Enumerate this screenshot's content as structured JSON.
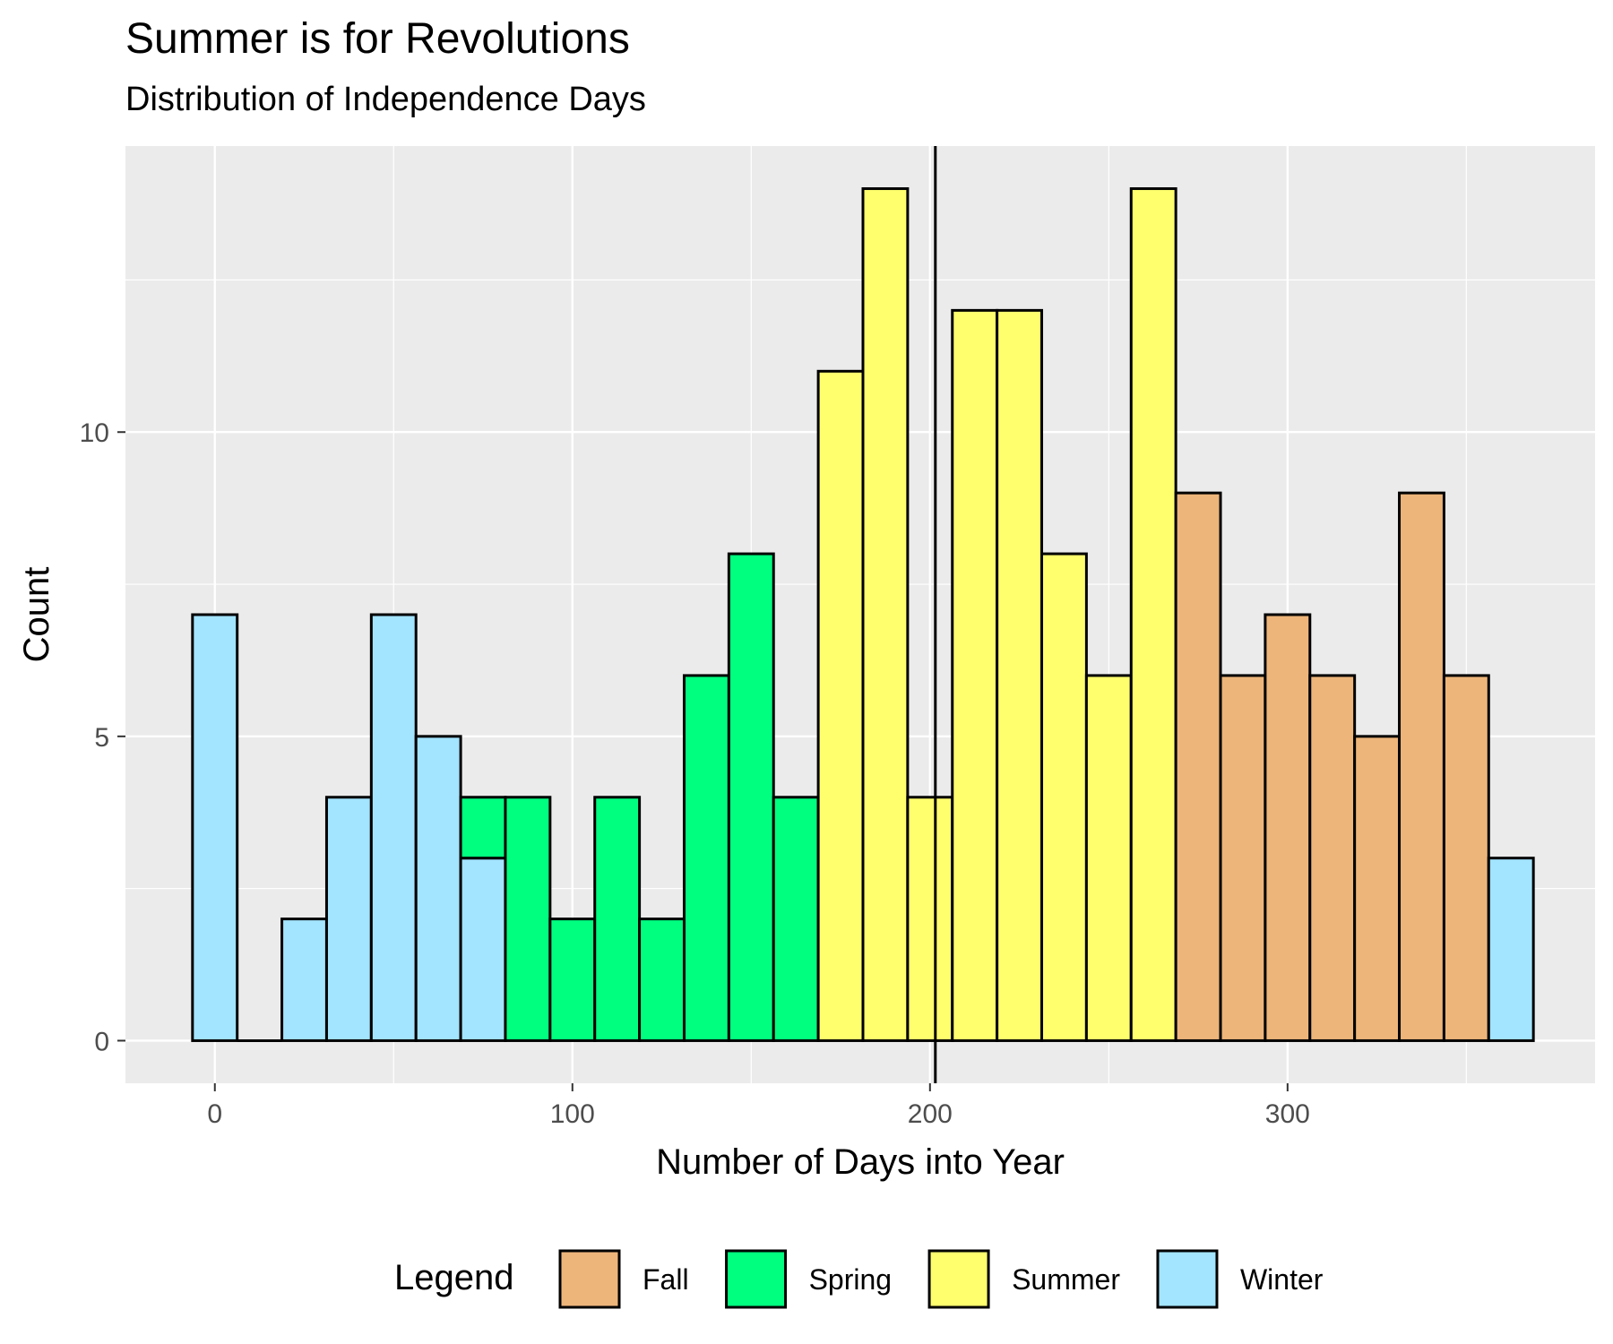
{
  "chart_data": {
    "type": "bar",
    "title": "Summer is for Revolutions",
    "subtitle": "Distribution of Independence Days",
    "xlabel": "Number of Days into Year",
    "ylabel": "Count",
    "xlim": [
      -25,
      386
    ],
    "ylim": [
      -0.7,
      14.7
    ],
    "x_ticks": [
      0,
      100,
      200,
      300
    ],
    "y_ticks": [
      0,
      5,
      10
    ],
    "bin_width": 12.5,
    "grid": true,
    "reference_line_x": 201.5,
    "legend": {
      "title": "Legend",
      "position": "bottom",
      "entries": [
        {
          "name": "Fall",
          "color": "#EDB57A"
        },
        {
          "name": "Spring",
          "color": "#00FF7F"
        },
        {
          "name": "Summer",
          "color": "#FFFF6E"
        },
        {
          "name": "Winter",
          "color": "#A3E4FF"
        }
      ]
    },
    "colors": {
      "panel_background": "#EBEBEB",
      "gridline": "#FFFFFF",
      "outline": "#000000"
    },
    "bins": [
      {
        "start": -6.25,
        "segments": [
          {
            "series": "Winter",
            "value": 7
          }
        ]
      },
      {
        "start": 6.25,
        "segments": []
      },
      {
        "start": 18.75,
        "segments": [
          {
            "series": "Winter",
            "value": 2
          }
        ]
      },
      {
        "start": 31.25,
        "segments": [
          {
            "series": "Winter",
            "value": 4
          }
        ]
      },
      {
        "start": 43.75,
        "segments": [
          {
            "series": "Winter",
            "value": 7
          }
        ]
      },
      {
        "start": 56.25,
        "segments": [
          {
            "series": "Winter",
            "value": 5
          }
        ]
      },
      {
        "start": 68.75,
        "segments": [
          {
            "series": "Winter",
            "value": 3
          },
          {
            "series": "Spring",
            "value": 1
          }
        ]
      },
      {
        "start": 81.25,
        "segments": [
          {
            "series": "Spring",
            "value": 4
          }
        ]
      },
      {
        "start": 93.75,
        "segments": [
          {
            "series": "Spring",
            "value": 2
          }
        ]
      },
      {
        "start": 106.25,
        "segments": [
          {
            "series": "Spring",
            "value": 4
          }
        ]
      },
      {
        "start": 118.75,
        "segments": [
          {
            "series": "Spring",
            "value": 2
          }
        ]
      },
      {
        "start": 131.25,
        "segments": [
          {
            "series": "Spring",
            "value": 6
          }
        ]
      },
      {
        "start": 143.75,
        "segments": [
          {
            "series": "Spring",
            "value": 8
          }
        ]
      },
      {
        "start": 156.25,
        "segments": [
          {
            "series": "Spring",
            "value": 4
          }
        ]
      },
      {
        "start": 168.75,
        "segments": [
          {
            "series": "Summer",
            "value": 11
          }
        ]
      },
      {
        "start": 181.25,
        "segments": [
          {
            "series": "Summer",
            "value": 14
          }
        ]
      },
      {
        "start": 193.75,
        "segments": [
          {
            "series": "Summer",
            "value": 4
          }
        ]
      },
      {
        "start": 206.25,
        "segments": [
          {
            "series": "Summer",
            "value": 12
          }
        ]
      },
      {
        "start": 218.75,
        "segments": [
          {
            "series": "Summer",
            "value": 12
          }
        ]
      },
      {
        "start": 231.25,
        "segments": [
          {
            "series": "Summer",
            "value": 8
          }
        ]
      },
      {
        "start": 243.75,
        "segments": [
          {
            "series": "Summer",
            "value": 6
          }
        ]
      },
      {
        "start": 256.25,
        "segments": [
          {
            "series": "Summer",
            "value": 14
          }
        ]
      },
      {
        "start": 268.75,
        "segments": [
          {
            "series": "Fall",
            "value": 9
          }
        ]
      },
      {
        "start": 281.25,
        "segments": [
          {
            "series": "Fall",
            "value": 6
          }
        ]
      },
      {
        "start": 293.75,
        "segments": [
          {
            "series": "Fall",
            "value": 7
          }
        ]
      },
      {
        "start": 306.25,
        "segments": [
          {
            "series": "Fall",
            "value": 6
          }
        ]
      },
      {
        "start": 318.75,
        "segments": [
          {
            "series": "Fall",
            "value": 5
          }
        ]
      },
      {
        "start": 331.25,
        "segments": [
          {
            "series": "Fall",
            "value": 9
          }
        ]
      },
      {
        "start": 343.75,
        "segments": [
          {
            "series": "Fall",
            "value": 6
          }
        ]
      },
      {
        "start": 356.25,
        "segments": [
          {
            "series": "Winter",
            "value": 3
          }
        ]
      }
    ]
  }
}
